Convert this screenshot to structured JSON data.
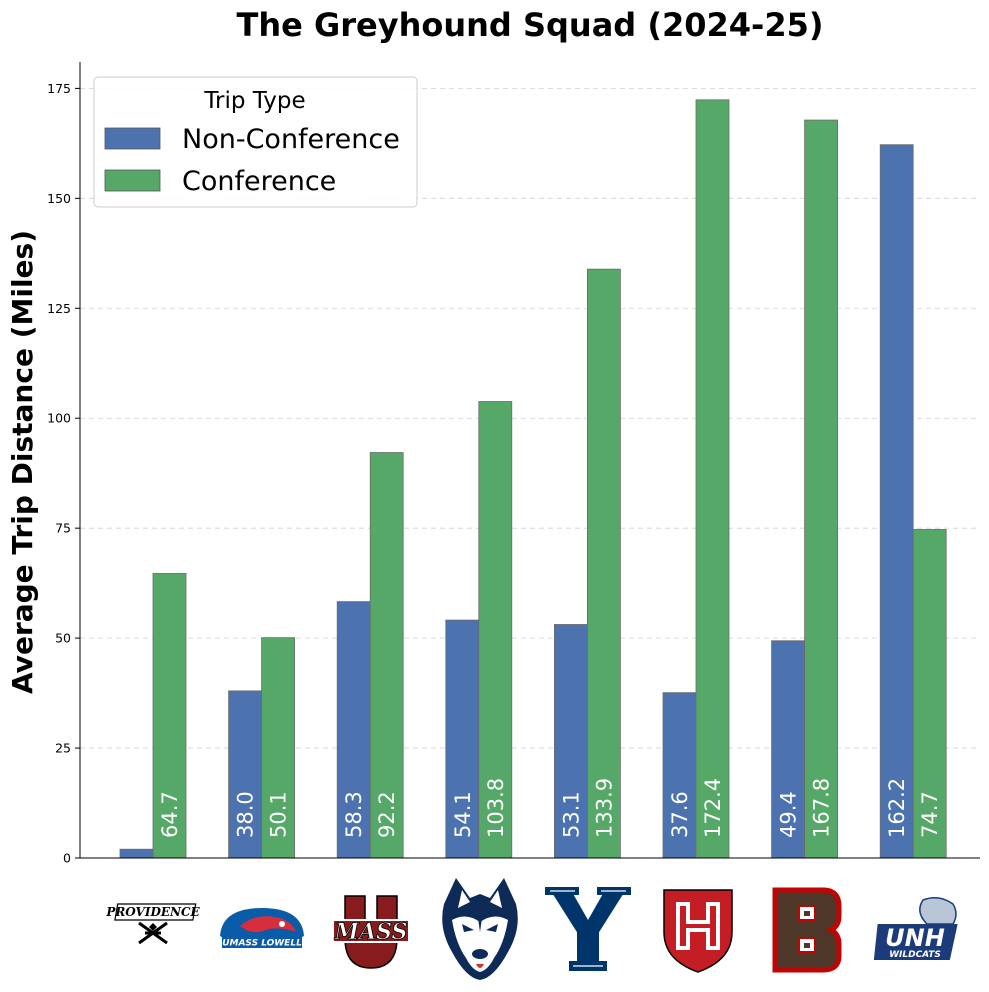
{
  "chart_data": {
    "type": "bar",
    "title": "The Greyhound Squad (2024-25)",
    "xlabel": "",
    "ylabel": "Average Trip Distance (Miles)",
    "ylim": [
      0,
      181
    ],
    "yticks": [
      0,
      25,
      50,
      75,
      100,
      125,
      150,
      175
    ],
    "grid": "y-dashed",
    "legend": {
      "title": "Trip Type",
      "placement": "top-left"
    },
    "categories": [
      "Providence",
      "UMass Lowell",
      "UMass",
      "UConn",
      "Yale",
      "Harvard",
      "Brown",
      "UNH"
    ],
    "series": [
      {
        "name": "Non-Conference",
        "color": "#4c72b0",
        "values": [
          2.0,
          38.0,
          58.3,
          54.1,
          53.1,
          37.6,
          49.4,
          162.2
        ],
        "labels": [
          "",
          "38.0",
          "58.3",
          "54.1",
          "53.1",
          "37.6",
          "49.4",
          "162.2"
        ]
      },
      {
        "name": "Conference",
        "color": "#55a868",
        "values": [
          64.7,
          50.1,
          92.2,
          103.8,
          133.9,
          172.4,
          167.8,
          74.7
        ],
        "labels": [
          "64.7",
          "50.1",
          "92.2",
          "103.8",
          "133.9",
          "172.4",
          "167.8",
          "74.7"
        ]
      }
    ]
  },
  "logos": [
    {
      "team": "Providence",
      "wordmark": "PROVIDENCE",
      "colors": [
        "#000000",
        "#ffffff"
      ]
    },
    {
      "team": "UMass Lowell",
      "wordmark": "UMASS LOWELL",
      "colors": [
        "#0a5ba8",
        "#d72e3d"
      ]
    },
    {
      "team": "UMass",
      "wordmark": "MASS",
      "letter": "U",
      "colors": [
        "#881c1c",
        "#ffffff"
      ]
    },
    {
      "team": "UConn",
      "colors": [
        "#0e2b58",
        "#ffffff"
      ]
    },
    {
      "team": "Yale",
      "letter": "Y",
      "colors": [
        "#00356b",
        "#ffffff"
      ]
    },
    {
      "team": "Harvard",
      "letter": "H",
      "colors": [
        "#c41e24",
        "#ffffff"
      ]
    },
    {
      "team": "Brown",
      "letter": "B",
      "colors": [
        "#4e3629",
        "#c00404"
      ]
    },
    {
      "team": "UNH",
      "wordmark": "UNH",
      "subword": "WILDCATS",
      "colors": [
        "#1b3b7a",
        "#ffffff"
      ]
    }
  ]
}
